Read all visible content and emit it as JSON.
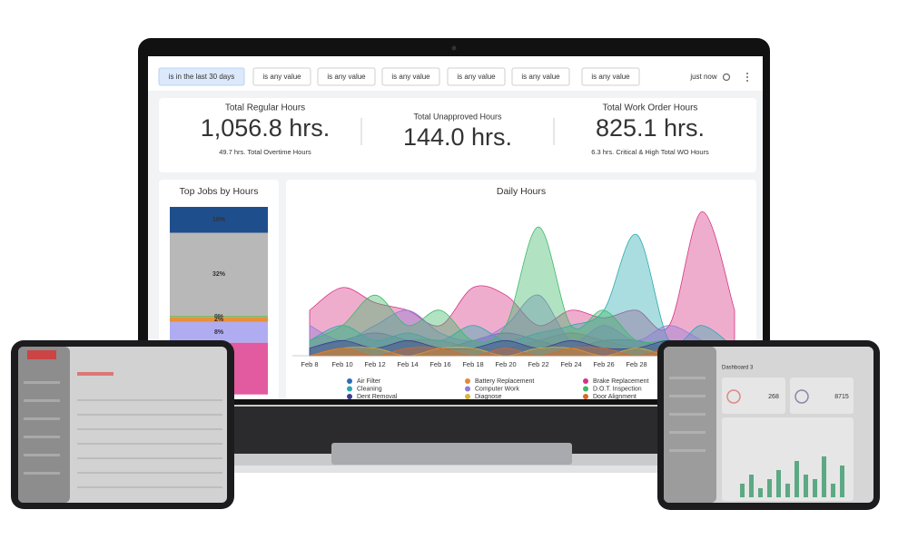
{
  "filters": [
    "is in the last 30 days",
    "is any value",
    "is any value",
    "is any value",
    "is any value",
    "is any value",
    "is any value"
  ],
  "status": "just now",
  "kpis": [
    {
      "title": "Total Regular Hours",
      "value": "1,056.8 hrs.",
      "subtitle": "49.7 hrs. Total Overtime Hours"
    },
    {
      "title": "Total Unapproved Hours",
      "value": "144.0 hrs."
    },
    {
      "title": "Total Work Order Hours",
      "value": "825.1 hrs.",
      "subtitle": "6.3 hrs. Critical & High Total WO Hours"
    }
  ],
  "top_jobs": {
    "type": "bar",
    "title": "Top Jobs by Hours",
    "values": [
      10,
      32,
      0,
      2,
      8,
      20
    ],
    "value_labels": [
      "10%",
      "32%",
      "0%",
      "2%",
      "8%",
      null
    ],
    "colors": [
      "#1f4e8c",
      "#b8b8b8",
      "#6cc07a",
      "#e8903a",
      "#b0acf2",
      "#e25aa0"
    ]
  },
  "daily_hours": {
    "type": "area",
    "title": "Daily Hours",
    "categories": [
      "Feb 8",
      "Feb 10",
      "Feb 12",
      "Feb 14",
      "Feb 16",
      "Feb 18",
      "Feb 20",
      "Feb 22",
      "Feb 24",
      "Feb 26",
      "Feb 28",
      null,
      null,
      null
    ],
    "ylim": [
      0,
      10
    ],
    "series": [
      {
        "name": "Air Filter",
        "color": "#2f6db5",
        "values": [
          0.5,
          1,
          1.5,
          1,
          0.5,
          1,
          1.5,
          1,
          0.5,
          1,
          1,
          0.5,
          0.5,
          0
        ]
      },
      {
        "name": "Battery Replacement",
        "color": "#e08a3a",
        "values": [
          0,
          0.5,
          0.5,
          1,
          1,
          0.5,
          0.5,
          1,
          1.5,
          1,
          0.5,
          0.5,
          0,
          0
        ]
      },
      {
        "name": "Brake Replacement",
        "color": "#d63384",
        "values": [
          3,
          4.5,
          3.5,
          3,
          2,
          4.5,
          4,
          2,
          3,
          2.5,
          3,
          2,
          9.5,
          3
        ]
      },
      {
        "name": "Cleaning",
        "color": "#2aa9b0",
        "values": [
          1,
          2,
          1,
          1.5,
          1,
          2,
          1,
          1.5,
          2,
          3,
          8,
          1,
          2,
          0.5
        ]
      },
      {
        "name": "Computer Work",
        "color": "#8f7bd6",
        "values": [
          2,
          1,
          2,
          3,
          1.5,
          1,
          2,
          4,
          1,
          2,
          1,
          2,
          1,
          0
        ]
      },
      {
        "name": "D.O.T. Inspection",
        "color": "#3cb96a",
        "values": [
          1,
          2,
          4,
          2,
          3,
          1,
          2,
          8.5,
          2,
          3,
          1,
          1,
          0.5,
          0
        ]
      },
      {
        "name": "Dent Removal",
        "color": "#3d3d8f",
        "values": [
          0.5,
          1,
          0.5,
          1,
          0.5,
          0.5,
          1,
          0.5,
          1,
          0.5,
          0.5,
          1,
          0.5,
          0
        ]
      },
      {
        "name": "Diagnose",
        "color": "#d9b53b",
        "values": [
          0,
          0.5,
          0.5,
          0,
          0.5,
          0.5,
          0,
          0.5,
          0.5,
          0,
          0.5,
          0,
          0,
          0
        ]
      },
      {
        "name": "Door Alignment",
        "color": "#d9682b",
        "values": [
          0,
          0.5,
          0,
          0.5,
          0.5,
          0,
          0.5,
          0,
          0.5,
          0.5,
          0,
          0.5,
          0,
          0
        ]
      }
    ]
  },
  "tablet_right": {
    "title": "Dashboard 3",
    "stats": [
      "268",
      "8715"
    ],
    "bars": [
      3,
      5,
      2,
      4,
      6,
      3,
      8,
      5,
      4,
      9,
      3,
      7
    ],
    "bar_color": "#3a9a6a",
    "ylim": [
      0,
      10
    ]
  }
}
